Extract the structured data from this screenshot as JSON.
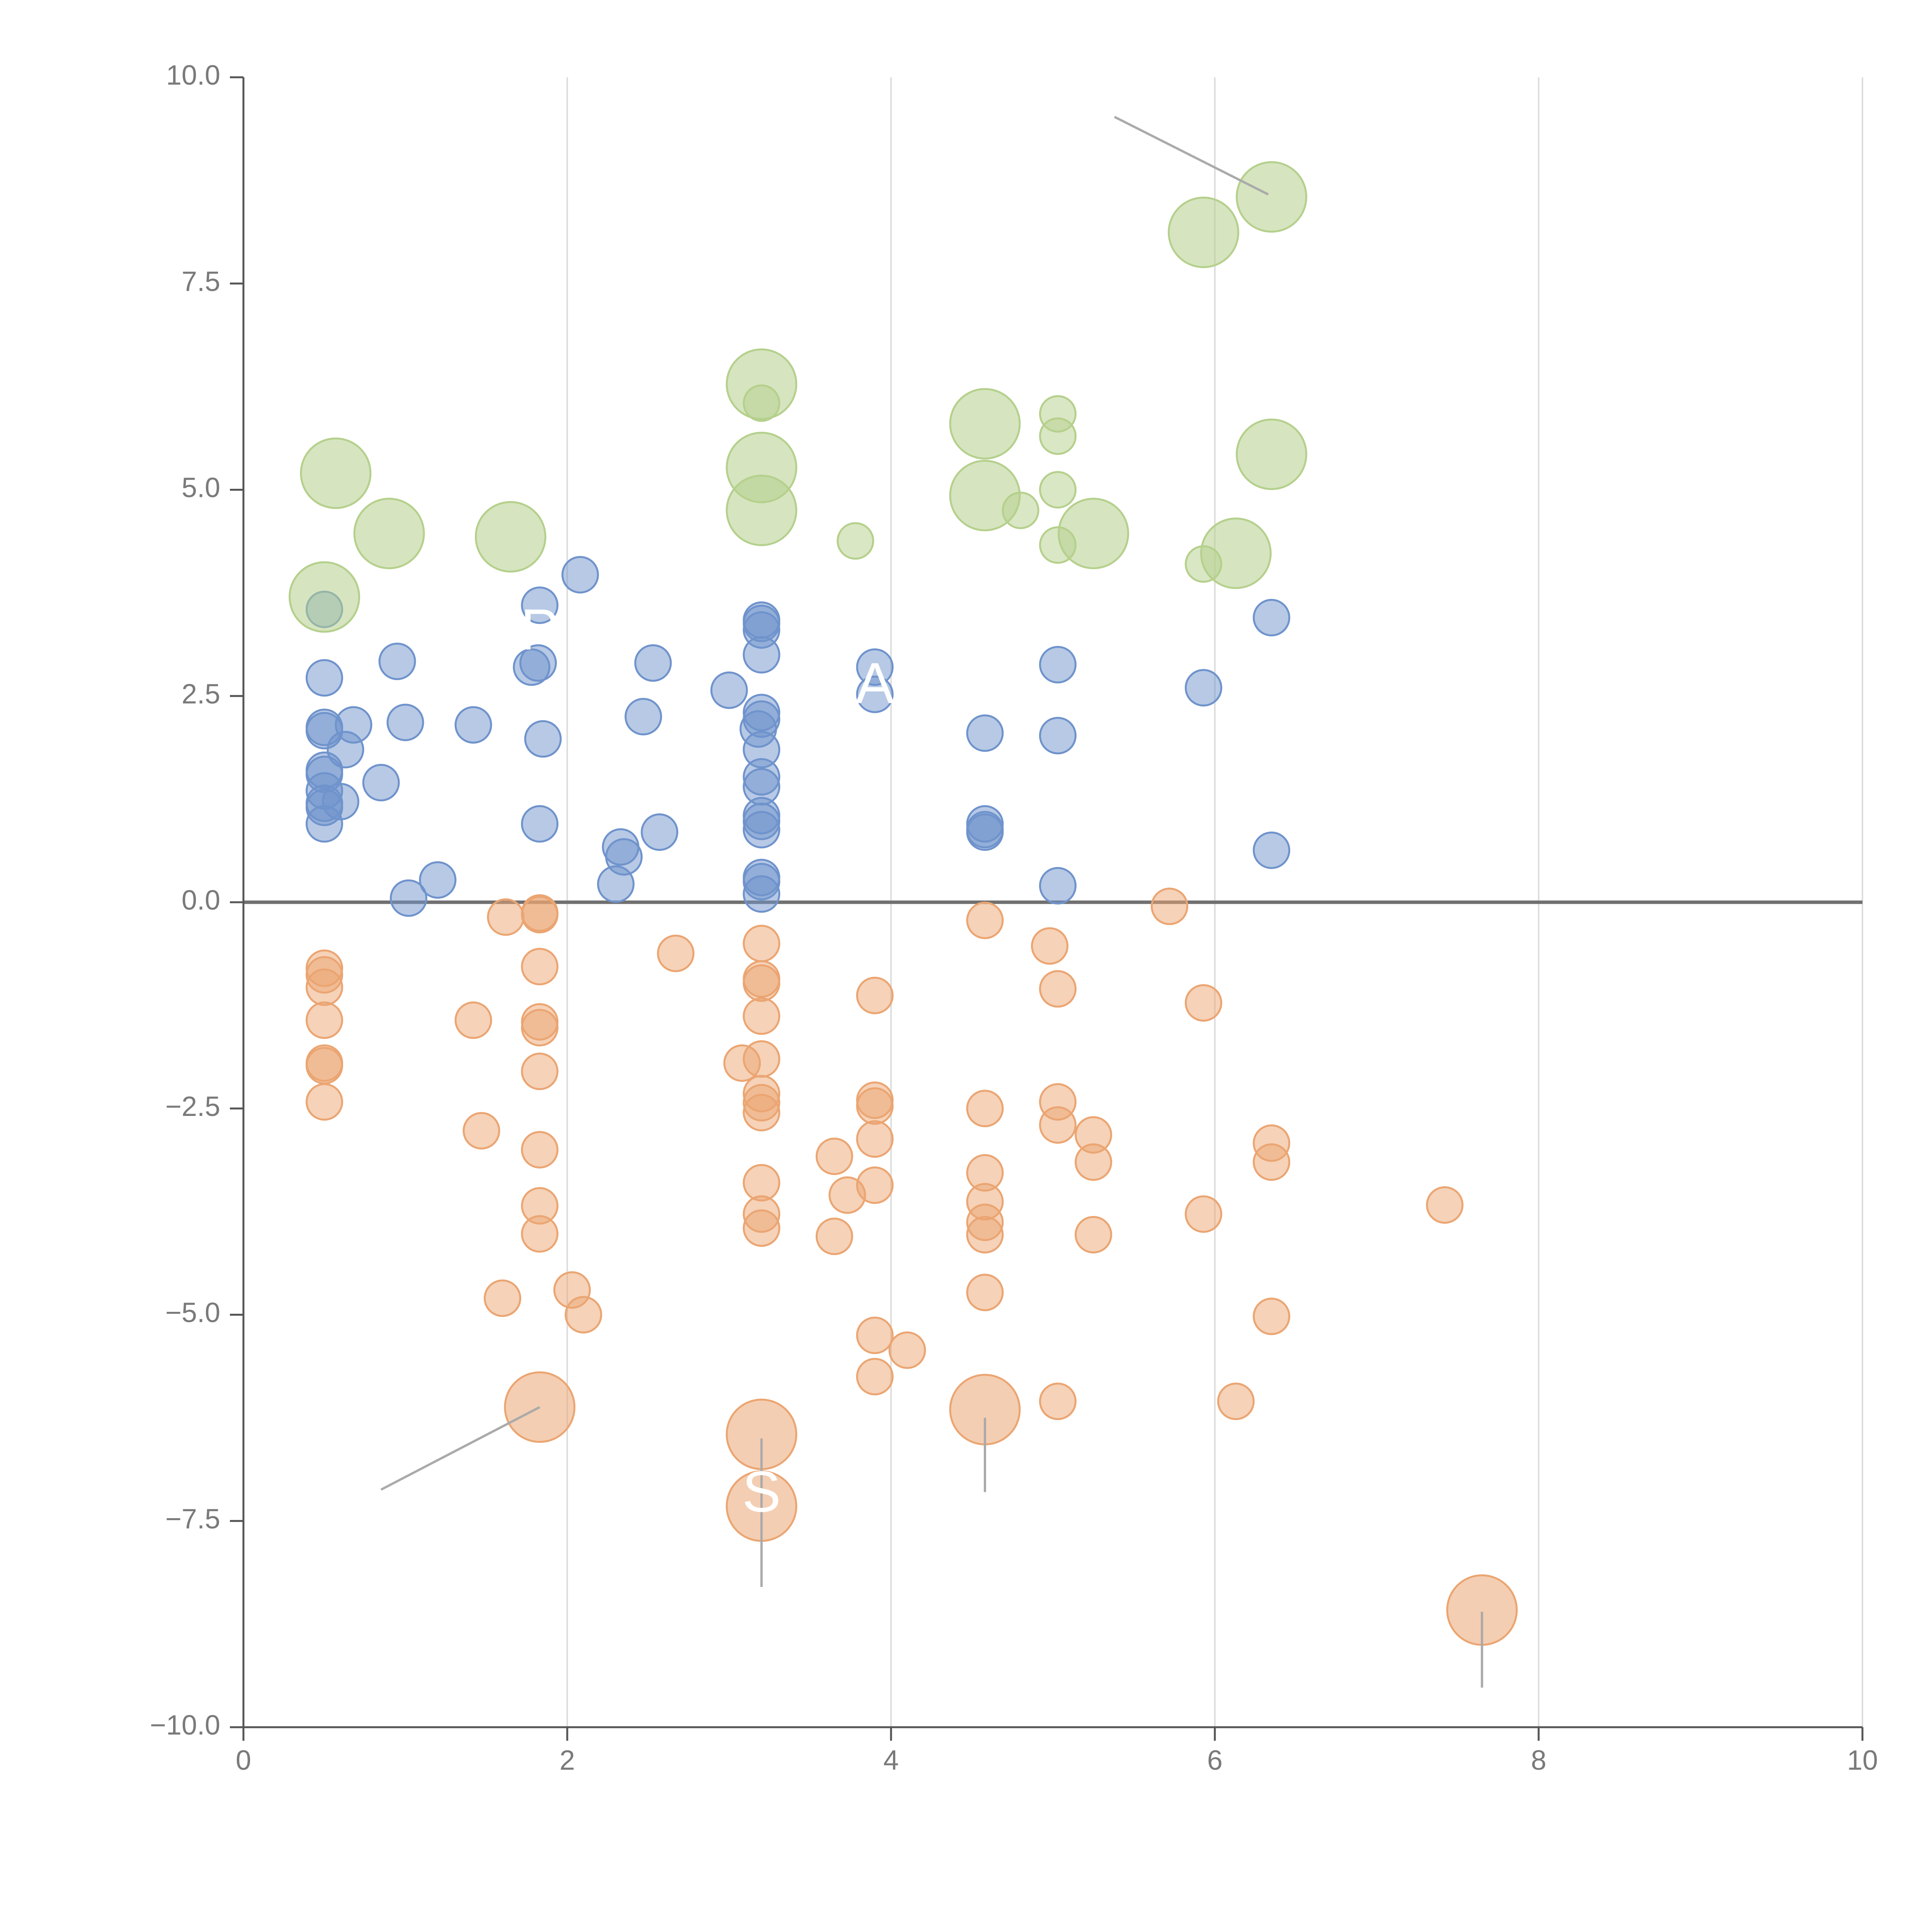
{
  "chart_data": {
    "type": "scatter",
    "title": "",
    "xlabel": "",
    "ylabel": "",
    "xlim": [
      0,
      10
    ],
    "ylim": [
      -10,
      10
    ],
    "grid": "vertical",
    "x_ticks": [
      0,
      2,
      4,
      6,
      8,
      10
    ],
    "y_ticks": [
      -10,
      -7.5,
      -5,
      -2.5,
      0,
      2.5,
      5,
      7.5,
      10
    ],
    "x_tick_labels": [
      "0",
      "2",
      "4",
      "6",
      "8",
      "10"
    ],
    "y_tick_labels": [
      "−10.0",
      "−7.5",
      "−5.0",
      "−2.5",
      "0.0",
      "2.5",
      "5.0",
      "7.5",
      "10.0"
    ],
    "zero_line": 0,
    "colors": {
      "blue": "#6f93cc",
      "orange": "#eba572",
      "green": "#b5d08c",
      "axis": "#555555",
      "grid": "#dddddd",
      "zero_line": "#707070",
      "leader": "#aaaaaa"
    },
    "series": [
      {
        "name": "blue",
        "color": "#6f93cc",
        "points": [
          [
            0.5,
            3.55
          ],
          [
            0.5,
            2.72
          ],
          [
            0.5,
            2.12
          ],
          [
            0.5,
            2.08
          ],
          [
            0.68,
            2.15
          ],
          [
            0.63,
            1.85
          ],
          [
            0.5,
            1.6
          ],
          [
            0.5,
            1.55
          ],
          [
            0.5,
            1.35
          ],
          [
            0.5,
            1.2
          ],
          [
            0.6,
            1.22
          ],
          [
            0.5,
            1.15
          ],
          [
            0.5,
            0.95
          ],
          [
            0.85,
            1.45
          ],
          [
            0.95,
            2.92
          ],
          [
            1.0,
            2.18
          ],
          [
            1.42,
            2.15
          ],
          [
            1.02,
            0.05
          ],
          [
            1.2,
            0.27
          ],
          [
            1.78,
            2.85
          ],
          [
            1.82,
            2.9
          ],
          [
            1.83,
            3.6
          ],
          [
            1.85,
            1.98
          ],
          [
            1.83,
            0.95
          ],
          [
            2.08,
            3.97
          ],
          [
            2.3,
            0.22
          ],
          [
            2.33,
            0.67
          ],
          [
            2.35,
            0.55
          ],
          [
            2.47,
            2.25
          ],
          [
            2.53,
            2.9
          ],
          [
            2.57,
            0.85
          ],
          [
            3.0,
            2.57
          ],
          [
            3.2,
            3.42
          ],
          [
            3.2,
            3.38
          ],
          [
            3.2,
            3.3
          ],
          [
            3.2,
            3.0
          ],
          [
            3.2,
            2.3
          ],
          [
            3.2,
            2.22
          ],
          [
            3.18,
            2.1
          ],
          [
            3.2,
            1.85
          ],
          [
            3.2,
            1.52
          ],
          [
            3.2,
            1.4
          ],
          [
            3.2,
            1.05
          ],
          [
            3.2,
            0.98
          ],
          [
            3.2,
            0.88
          ],
          [
            3.2,
            0.3
          ],
          [
            3.2,
            0.25
          ],
          [
            3.2,
            0.1
          ],
          [
            3.9,
            2.85
          ],
          [
            3.9,
            2.52
          ],
          [
            4.58,
            2.05
          ],
          [
            4.58,
            0.95
          ],
          [
            4.58,
            0.88
          ],
          [
            4.58,
            0.85
          ],
          [
            5.03,
            2.88
          ],
          [
            5.03,
            2.02
          ],
          [
            5.03,
            0.2
          ],
          [
            5.93,
            2.6
          ],
          [
            6.35,
            3.45
          ],
          [
            6.35,
            0.63
          ]
        ]
      },
      {
        "name": "orange",
        "color": "#eba572",
        "points": [
          [
            0.5,
            -0.8
          ],
          [
            0.5,
            -0.88
          ],
          [
            0.5,
            -1.03
          ],
          [
            0.5,
            -1.43
          ],
          [
            0.5,
            -1.95
          ],
          [
            0.5,
            -1.98
          ],
          [
            0.5,
            -2.42
          ],
          [
            1.42,
            -1.43
          ],
          [
            1.47,
            -2.77
          ],
          [
            1.6,
            -4.8
          ],
          [
            1.62,
            -0.18
          ],
          [
            1.83,
            -0.13
          ],
          [
            1.83,
            -0.15
          ],
          [
            1.83,
            -0.78
          ],
          [
            1.83,
            -1.45
          ],
          [
            1.83,
            -1.52
          ],
          [
            1.83,
            -2.05
          ],
          [
            1.83,
            -3.0
          ],
          [
            1.83,
            -3.68
          ],
          [
            1.83,
            -4.02
          ],
          [
            2.03,
            -4.7
          ],
          [
            2.1,
            -5.0
          ],
          [
            2.67,
            -0.62
          ],
          [
            3.2,
            -0.5
          ],
          [
            3.2,
            -0.93
          ],
          [
            3.2,
            -0.98
          ],
          [
            3.2,
            -1.38
          ],
          [
            3.2,
            -1.9
          ],
          [
            3.08,
            -1.95
          ],
          [
            3.2,
            -2.32
          ],
          [
            3.2,
            -2.43
          ],
          [
            3.2,
            -2.55
          ],
          [
            3.2,
            -3.4
          ],
          [
            3.2,
            -3.78
          ],
          [
            3.2,
            -3.95
          ],
          [
            3.65,
            -3.08
          ],
          [
            3.65,
            -4.05
          ],
          [
            3.73,
            -3.55
          ],
          [
            3.9,
            -1.13
          ],
          [
            3.9,
            -2.4
          ],
          [
            3.9,
            -2.47
          ],
          [
            3.9,
            -2.87
          ],
          [
            3.9,
            -3.43
          ],
          [
            3.9,
            -5.25
          ],
          [
            3.9,
            -5.75
          ],
          [
            4.1,
            -5.43
          ],
          [
            4.58,
            -0.22
          ],
          [
            4.58,
            -2.5
          ],
          [
            4.58,
            -3.28
          ],
          [
            4.58,
            -3.63
          ],
          [
            4.58,
            -3.88
          ],
          [
            4.58,
            -4.03
          ],
          [
            4.58,
            -4.73
          ],
          [
            4.98,
            -0.53
          ],
          [
            5.03,
            -1.05
          ],
          [
            5.03,
            -2.42
          ],
          [
            5.03,
            -2.7
          ],
          [
            5.03,
            -6.05
          ],
          [
            5.25,
            -2.82
          ],
          [
            5.25,
            -3.15
          ],
          [
            5.25,
            -4.03
          ],
          [
            5.72,
            -0.05
          ],
          [
            5.93,
            -1.22
          ],
          [
            5.93,
            -3.78
          ],
          [
            6.13,
            -6.05
          ],
          [
            6.35,
            -2.92
          ],
          [
            6.35,
            -3.15
          ],
          [
            6.35,
            -5.02
          ],
          [
            7.42,
            -3.67
          ]
        ]
      },
      {
        "name": "green",
        "color": "#b5d08c",
        "points": [
          [
            3.2,
            6.05
          ],
          [
            3.78,
            4.38
          ],
          [
            4.8,
            4.75
          ],
          [
            5.03,
            5.92
          ],
          [
            5.03,
            5.65
          ],
          [
            5.03,
            5.0
          ],
          [
            5.03,
            4.33
          ],
          [
            5.93,
            4.1
          ]
        ]
      }
    ],
    "highlighted_points": [
      {
        "series": "green",
        "x": 0.5,
        "y": 3.7
      },
      {
        "series": "green",
        "x": 0.57,
        "y": 5.2
      },
      {
        "series": "green",
        "x": 0.9,
        "y": 4.47
      },
      {
        "series": "green",
        "x": 1.65,
        "y": 4.43
      },
      {
        "series": "green",
        "x": 3.2,
        "y": 6.28
      },
      {
        "series": "green",
        "x": 3.2,
        "y": 5.27
      },
      {
        "series": "green",
        "x": 3.2,
        "y": 4.75
      },
      {
        "series": "green",
        "x": 4.58,
        "y": 5.8
      },
      {
        "series": "green",
        "x": 4.58,
        "y": 4.93
      },
      {
        "series": "green",
        "x": 5.25,
        "y": 4.47
      },
      {
        "series": "green",
        "x": 5.93,
        "y": 8.12
      },
      {
        "series": "green",
        "x": 6.13,
        "y": 4.23
      },
      {
        "series": "green",
        "x": 6.35,
        "y": 5.43
      },
      {
        "series": "green",
        "x": 6.35,
        "y": 8.55
      },
      {
        "series": "orange",
        "x": 1.83,
        "y": -6.12
      },
      {
        "series": "orange",
        "x": 3.2,
        "y": -6.45
      },
      {
        "series": "orange",
        "x": 3.2,
        "y": -7.32
      },
      {
        "series": "orange",
        "x": 4.58,
        "y": -6.15
      },
      {
        "series": "orange",
        "x": 7.65,
        "y": -8.58
      }
    ],
    "leader_lines": [
      {
        "from": [
          5.38,
          9.52
        ],
        "to": [
          6.33,
          8.58
        ]
      },
      {
        "from": [
          0.85,
          -7.12
        ],
        "to": [
          1.83,
          -6.12
        ]
      },
      {
        "from": [
          3.2,
          -6.5
        ],
        "to": [
          3.2,
          -8.3
        ]
      },
      {
        "from": [
          4.58,
          -6.25
        ],
        "to": [
          4.58,
          -7.15
        ]
      },
      {
        "from": [
          7.65,
          -8.6
        ],
        "to": [
          7.65,
          -9.52
        ]
      }
    ],
    "annotations": [
      {
        "text": "A",
        "x": 3.9,
        "y": 2.6
      },
      {
        "text": "S",
        "x": 3.2,
        "y": -7.2
      },
      {
        "text": "P",
        "x": 1.83,
        "y": 3.25
      }
    ]
  }
}
